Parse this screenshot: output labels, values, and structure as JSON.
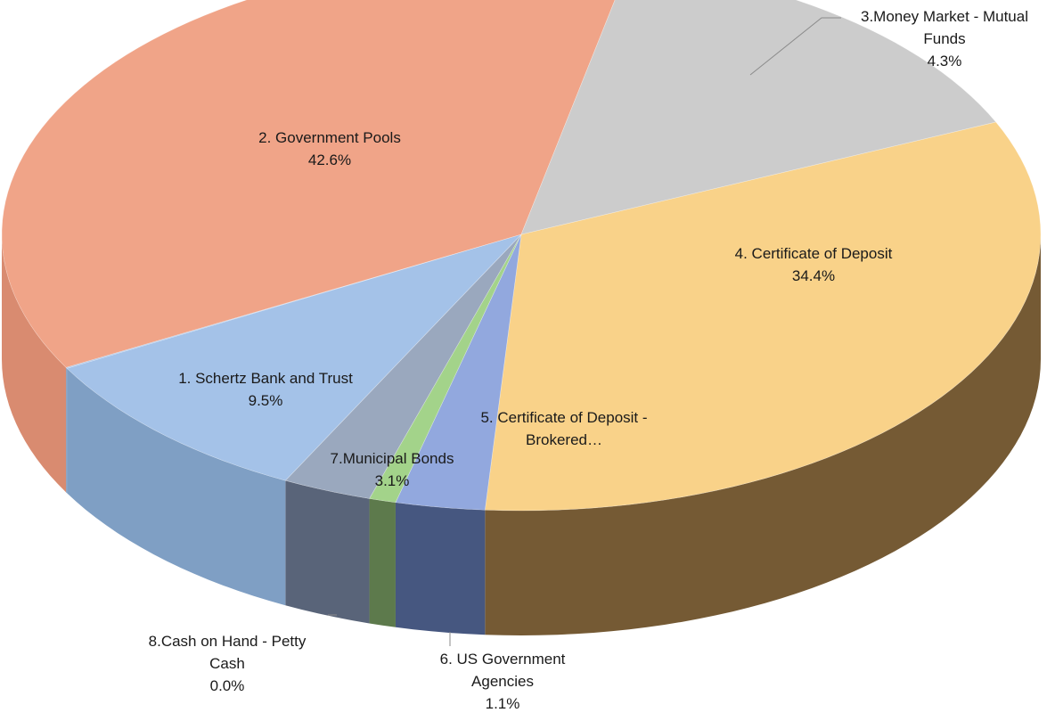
{
  "chart_data": {
    "type": "pie",
    "title": "",
    "style": "3d-exploded-perspective",
    "slices": [
      {
        "label": "1. Schertz Bank and Trust",
        "value_label": "9.5%",
        "value": 9.5,
        "color": "#a4c2e8",
        "side_color": "#7f9fc4"
      },
      {
        "label": "2. Government Pools",
        "value_label": "42.6%",
        "value": 42.6,
        "color": "#f0a488",
        "side_color": "#d98b70"
      },
      {
        "label": "3.Money Market - Mutual Funds",
        "value_label": "4.3%",
        "value": 4.3,
        "color": "#cccccc",
        "side_color": "#9d9d9d"
      },
      {
        "label": "4. Certificate of Deposit",
        "value_label": "34.4%",
        "value": 34.4,
        "color": "#f9d289",
        "side_color": "#755a34"
      },
      {
        "label": "5. Certificate of Deposit - Brokered…",
        "value_label": "",
        "value": 5.1,
        "color": "#92a8de",
        "side_color": "#465780"
      },
      {
        "label": "6. US Government Agencies",
        "value_label": "1.1%",
        "value": 1.1,
        "color": "#a3d38a",
        "side_color": "#5d7a4c"
      },
      {
        "label": "7.Municipal Bonds",
        "value_label": "3.1%",
        "value": 3.1,
        "color": "#9aa8be",
        "side_color": "#596479"
      },
      {
        "label": "8.Cash on Hand - Petty Cash",
        "value_label": "0.0%",
        "value": 0.0,
        "color": "#a4c2e8",
        "side_color": "#7f9fc4"
      }
    ]
  }
}
